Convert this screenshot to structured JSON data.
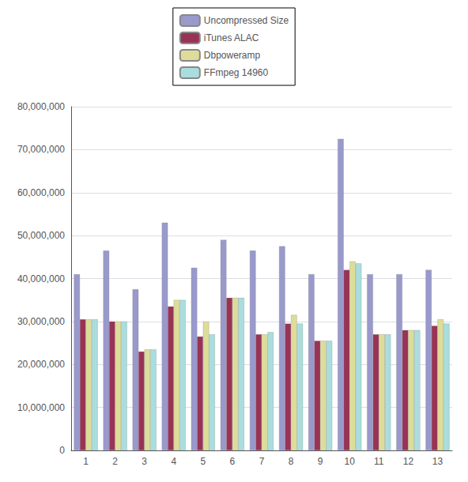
{
  "chart_data": {
    "type": "bar",
    "categories": [
      1,
      2,
      3,
      4,
      5,
      6,
      7,
      8,
      9,
      10,
      11,
      12,
      13
    ],
    "series": [
      {
        "name": "Uncompressed Size",
        "color": "#9999cc",
        "values": [
          41000000,
          46500000,
          37500000,
          53000000,
          42500000,
          49000000,
          46500000,
          47500000,
          41000000,
          72500000,
          41000000,
          41000000,
          42000000
        ]
      },
      {
        "name": "iTunes ALAC",
        "color": "#993355",
        "values": [
          30500000,
          30000000,
          23000000,
          33500000,
          26500000,
          35500000,
          27000000,
          29500000,
          25500000,
          42000000,
          27000000,
          28000000,
          29000000
        ]
      },
      {
        "name": "Dbpoweramp",
        "color": "#dddd99",
        "values": [
          30500000,
          30000000,
          23500000,
          35000000,
          30000000,
          35500000,
          27000000,
          31500000,
          25500000,
          44000000,
          27000000,
          28000000,
          30500000
        ]
      },
      {
        "name": "FFmpeg 14960",
        "color": "#aadddd",
        "values": [
          30500000,
          30000000,
          23500000,
          35000000,
          27000000,
          35500000,
          27500000,
          29500000,
          25500000,
          43500000,
          27000000,
          28000000,
          29500000
        ]
      }
    ],
    "ylim": [
      0,
      80000000
    ],
    "yticks": [
      0,
      {
        "value": 10000000,
        "label": "10,000,000"
      },
      {
        "value": 20000000,
        "label": "20,000,000"
      },
      {
        "value": 30000000,
        "label": "30,000,000"
      },
      {
        "value": 40000000,
        "label": "40,000,000"
      },
      {
        "value": 50000000,
        "label": "50,000,000"
      },
      {
        "value": 60000000,
        "label": "60,000,000"
      },
      {
        "value": 70000000,
        "label": "70,000,000"
      },
      {
        "value": 80000000,
        "label": "80,000,000"
      }
    ],
    "grid": true,
    "legend": "top"
  }
}
